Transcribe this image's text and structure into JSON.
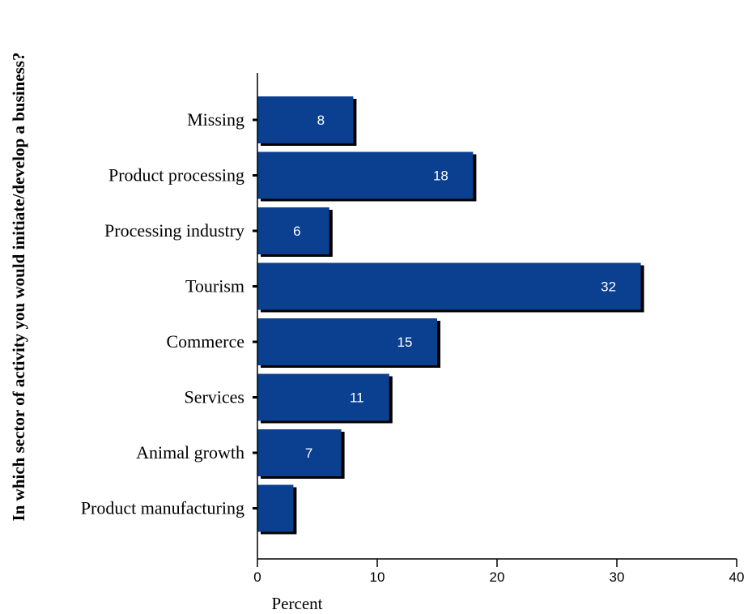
{
  "chart_data": {
    "type": "bar",
    "orientation": "horizontal",
    "categories": [
      "Missing",
      "Product processing",
      "Processing industry",
      "Tourism",
      "Commerce",
      "Services",
      "Animal growth",
      "Product manufacturing"
    ],
    "values": [
      8,
      18,
      6,
      32,
      15,
      11,
      7,
      3
    ],
    "data_labels": [
      "8",
      "18",
      "6",
      "32",
      "15",
      "11",
      "7",
      ""
    ],
    "xlabel": "Percent",
    "ylabel": "In which sector of activity you would initiate/develop a business?",
    "xlim": [
      0,
      40
    ],
    "xticks": [
      0,
      10,
      20,
      30,
      40
    ],
    "grid": false,
    "legend": "none",
    "colors": {
      "bar": "#0b3f8f",
      "bar_shadow": "#000000",
      "value_label": "#ffffff",
      "axis": "#000000"
    }
  }
}
